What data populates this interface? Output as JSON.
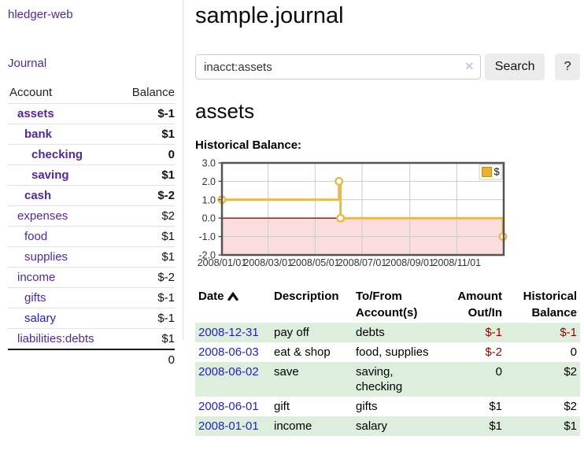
{
  "brand": "hledger-web",
  "nav": {
    "journal": "Journal"
  },
  "colors": {
    "link_purple": "#53289a",
    "link_blue": "#2222cc",
    "negative_strong": "#9b0000",
    "negative_muted": "#bc7672",
    "stripe_green": "#ddeedd",
    "chart_gold": "#e8ba48",
    "chart_negative_fill": "#fcdddd",
    "chart_zero_line": "#a30000"
  },
  "sidebar": {
    "header": {
      "account": "Account",
      "balance": "Balance"
    },
    "accounts": [
      {
        "name": "assets",
        "balance": "$-1",
        "level": 1,
        "bold": true,
        "neg": "strong"
      },
      {
        "name": "bank",
        "balance": "$1",
        "level": 2,
        "bold": true,
        "neg": null
      },
      {
        "name": "checking",
        "balance": "0",
        "level": 3,
        "bold": true,
        "neg": null
      },
      {
        "name": "saving",
        "balance": "$1",
        "level": 3,
        "bold": true,
        "neg": null
      },
      {
        "name": "cash",
        "balance": "$-2",
        "level": 2,
        "bold": true,
        "neg": "strong"
      },
      {
        "name": "expenses",
        "balance": "$2",
        "level": 1,
        "bold": false,
        "neg": null
      },
      {
        "name": "food",
        "balance": "$1",
        "level": 2,
        "bold": false,
        "neg": null
      },
      {
        "name": "supplies",
        "balance": "$1",
        "level": 2,
        "bold": false,
        "neg": null
      },
      {
        "name": "income",
        "balance": "$-2",
        "level": 1,
        "bold": false,
        "neg": "soft"
      },
      {
        "name": "gifts",
        "balance": "$-1",
        "level": 2,
        "bold": false,
        "neg": "soft"
      },
      {
        "name": "salary",
        "balance": "$-1",
        "level": 2,
        "bold": false,
        "neg": "soft",
        "blue": true
      },
      {
        "name": "liabilities:debts",
        "balance": "$1",
        "level": 1,
        "bold": false,
        "neg": null
      }
    ],
    "total": "0"
  },
  "main": {
    "title": "sample.journal",
    "search": {
      "value": "inacct:assets",
      "clear": "✕",
      "search_button": "Search",
      "help_button": "?"
    },
    "account_heading": "assets",
    "chart_heading": "Historical Balance:"
  },
  "chart_data": {
    "type": "line",
    "title": "Historical Balance:",
    "step": true,
    "legend": {
      "label": "$",
      "position": "top-right"
    },
    "series": [
      {
        "name": "$",
        "color": "#e8ba48",
        "points": [
          {
            "date": "2008-01-01",
            "value": 1
          },
          {
            "date": "2008-06-01",
            "value": 2
          },
          {
            "date": "2008-06-03",
            "value": 0
          },
          {
            "date": "2008-12-31",
            "value": -1
          }
        ]
      }
    ],
    "xlim": [
      "2008-01-01",
      "2009-01-01"
    ],
    "ylim": [
      -2,
      3
    ],
    "y_ticks": [
      3.0,
      2.0,
      1.0,
      0.0,
      -1.0,
      -2.0
    ],
    "x_ticks": [
      {
        "label": "2008/01/01",
        "date": "2008-01-01"
      },
      {
        "label": "2008/03/01",
        "date": "2008-03-01"
      },
      {
        "label": "2008/05/01",
        "date": "2008-05-01"
      },
      {
        "label": "2008/07/01",
        "date": "2008-07-01"
      },
      {
        "label": "2008/09/01",
        "date": "2008-09-01"
      },
      {
        "label": "2008/11/01",
        "date": "2008-11-01"
      }
    ],
    "grid": true
  },
  "register": {
    "columns": [
      "Date",
      "Description",
      "To/From Account(s)",
      "Amount Out/In",
      "Historical Balance"
    ],
    "sort_icon": "chevron-up",
    "rows": [
      {
        "date": "2008-12-31",
        "description": "pay off",
        "accounts": "debts",
        "amount": "$-1",
        "amount_neg": true,
        "balance": "$-1",
        "balance_neg": true
      },
      {
        "date": "2008-06-03",
        "description": "eat & shop",
        "accounts": "food, supplies",
        "amount": "$-2",
        "amount_neg": true,
        "balance": "0",
        "balance_neg": false
      },
      {
        "date": "2008-06-02",
        "description": "save",
        "accounts": "saving, checking",
        "amount": "0",
        "amount_neg": false,
        "balance": "$2",
        "balance_neg": false
      },
      {
        "date": "2008-06-01",
        "description": "gift",
        "accounts": "gifts",
        "amount": "$1",
        "amount_neg": false,
        "balance": "$2",
        "balance_neg": false
      },
      {
        "date": "2008-01-01",
        "description": "income",
        "accounts": "salary",
        "amount": "$1",
        "amount_neg": false,
        "balance": "$1",
        "balance_neg": false
      }
    ]
  }
}
